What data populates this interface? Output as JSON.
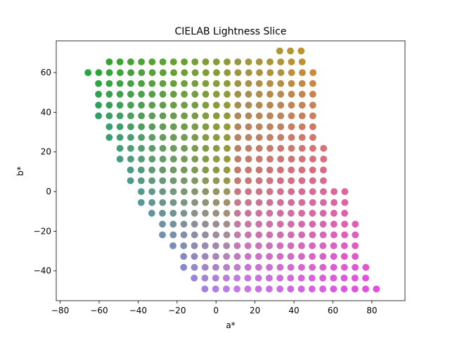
{
  "chart_data": {
    "type": "scatter",
    "title": "CIELAB Lightness Slice",
    "xlabel": "a*",
    "ylabel": "b*",
    "xlim": [
      -82,
      97
    ],
    "ylim": [
      -55,
      76
    ],
    "xticks": [
      -80,
      -60,
      -40,
      -20,
      0,
      20,
      40,
      60,
      80
    ],
    "xtick_labels": [
      "−80",
      "−60",
      "−40",
      "−20",
      "0",
      "20",
      "40",
      "60",
      "80"
    ],
    "yticks": [
      -40,
      -20,
      0,
      20,
      40,
      60
    ],
    "ytick_labels": [
      "−40",
      "−20",
      "0",
      "20",
      "40",
      "60"
    ],
    "grid": false,
    "legend": false,
    "grid_spacing": 5.5,
    "rows": [
      {
        "b": 70.9,
        "a_start": 32.7,
        "count": 3
      },
      {
        "b": 65.4,
        "a_start": -54.8,
        "count": 19
      },
      {
        "b": 60.0,
        "a_start": -65.7,
        "count": 22
      },
      {
        "b": 54.5,
        "a_start": -60.3,
        "count": 21
      },
      {
        "b": 49.1,
        "a_start": -60.3,
        "count": 21
      },
      {
        "b": 43.6,
        "a_start": -60.3,
        "count": 21
      },
      {
        "b": 38.2,
        "a_start": -60.3,
        "count": 21
      },
      {
        "b": 32.7,
        "a_start": -54.8,
        "count": 20
      },
      {
        "b": 27.3,
        "a_start": -54.8,
        "count": 20
      },
      {
        "b": 21.8,
        "a_start": -49.3,
        "count": 20
      },
      {
        "b": 16.4,
        "a_start": -49.3,
        "count": 20
      },
      {
        "b": 10.9,
        "a_start": -43.9,
        "count": 19
      },
      {
        "b": 5.5,
        "a_start": -43.9,
        "count": 19
      },
      {
        "b": 0.0,
        "a_start": -38.4,
        "count": 20
      },
      {
        "b": -5.5,
        "a_start": -38.4,
        "count": 20
      },
      {
        "b": -10.9,
        "a_start": -33.0,
        "count": 19
      },
      {
        "b": -16.4,
        "a_start": -27.5,
        "count": 19
      },
      {
        "b": -21.8,
        "a_start": -27.5,
        "count": 19
      },
      {
        "b": -27.3,
        "a_start": -22.1,
        "count": 18
      },
      {
        "b": -32.7,
        "a_start": -16.6,
        "count": 17
      },
      {
        "b": -38.2,
        "a_start": -16.6,
        "count": 18
      },
      {
        "b": -43.6,
        "a_start": -11.2,
        "count": 17
      },
      {
        "b": -49.1,
        "a_start": -5.7,
        "count": 17
      }
    ],
    "color_anchors": {
      "green": "#22a822",
      "orange": "#ee8a1a",
      "olive": "#9a9a3a",
      "teal": "#2e9aa8",
      "pink": "#e8609a",
      "blue": "#1e9ae0",
      "violet": "#c47ae8",
      "magenta": "#e44ee0"
    }
  }
}
